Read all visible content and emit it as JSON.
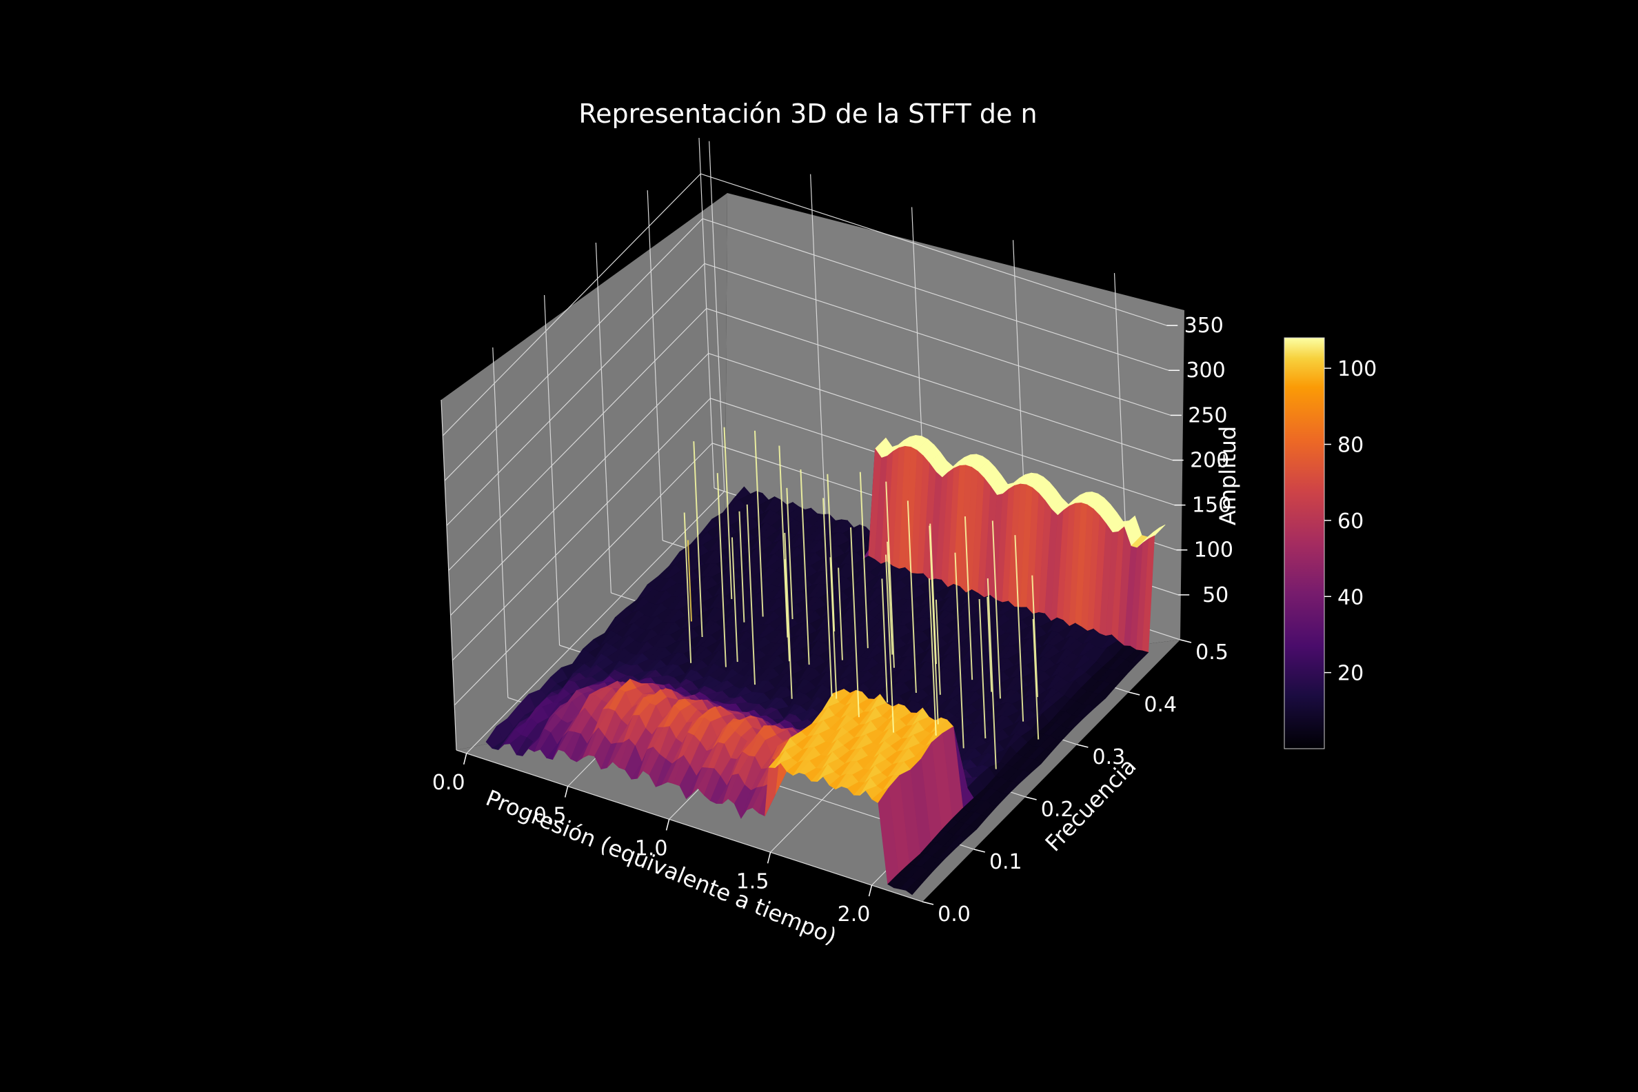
{
  "chart_data": {
    "type": "surface3d",
    "title": "Representación 3D de la STFT de n",
    "xlabel": "Progresión (equivalente a tiempo)",
    "ylabel": "Frecuencia",
    "zlabel": "Amplitud",
    "x_ticks": [
      "0.0",
      "0.5",
      "1.0",
      "1.5",
      "2.0"
    ],
    "y_ticks": [
      "0.0",
      "0.1",
      "0.2",
      "0.3",
      "0.4",
      "0.5"
    ],
    "z_ticks": [
      "50",
      "100",
      "150",
      "200",
      "250",
      "300",
      "350"
    ],
    "xlim": [
      -0.05,
      2.25
    ],
    "ylim": [
      0,
      0.5
    ],
    "zlim": [
      0,
      390
    ],
    "colormap": "inferno",
    "colorbar_ticks": [
      "20",
      "40",
      "60",
      "80",
      "100"
    ],
    "colorbar_range": [
      0,
      108
    ],
    "background": "#000000",
    "pane_color": "#7a7a7a",
    "grid": true,
    "surface_features": {
      "peak_region": {
        "x_range": [
          1.5,
          2.1
        ],
        "y_range": [
          0.0,
          0.15
        ],
        "amplitude": 105
      },
      "ridge_at_max_frequency": {
        "y": 0.5,
        "x_range": [
          0.8,
          2.2
        ],
        "amplitude": 140
      },
      "spikes": {
        "x_range": [
          0.4,
          2.1
        ],
        "count": 38,
        "max_amplitude": 230
      },
      "cutoff_progression": 2.05
    }
  }
}
